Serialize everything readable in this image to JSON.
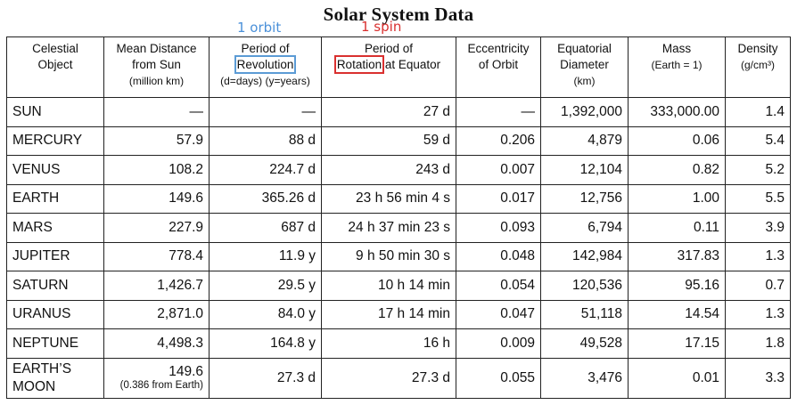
{
  "title": "Solar System Data",
  "notes": {
    "orbit": "1 orbit",
    "spin": "1 spin"
  },
  "headers": [
    {
      "lines": [
        "Celestial",
        "Object"
      ],
      "sub": ""
    },
    {
      "lines": [
        "Mean Distance",
        "from Sun"
      ],
      "sub": "(million km)"
    },
    {
      "lines": [
        "Period of",
        "Revolution"
      ],
      "sub": "(d=days)  (y=years)"
    },
    {
      "lines": [
        "Period of",
        "Rotation",
        "at Equator"
      ],
      "sub": ""
    },
    {
      "lines": [
        "Eccentricity",
        "of Orbit"
      ],
      "sub": ""
    },
    {
      "lines": [
        "Equatorial",
        "Diameter"
      ],
      "sub": "(km)"
    },
    {
      "lines": [
        "Mass",
        "(Earth = 1)"
      ],
      "sub": ""
    },
    {
      "lines": [
        "Density",
        "(g/cm³)"
      ],
      "sub": ""
    }
  ],
  "rows": [
    {
      "name": "SUN",
      "distance": "—",
      "revolution": "—",
      "rotation": "27 d",
      "eccentricity": "—",
      "diameter": "1,392,000",
      "mass": "333,000.00",
      "density": "1.4"
    },
    {
      "name": "MERCURY",
      "distance": "57.9",
      "revolution": "88 d",
      "rotation": "59 d",
      "eccentricity": "0.206",
      "diameter": "4,879",
      "mass": "0.06",
      "density": "5.4"
    },
    {
      "name": "VENUS",
      "distance": "108.2",
      "revolution": "224.7 d",
      "rotation": "243 d",
      "eccentricity": "0.007",
      "diameter": "12,104",
      "mass": "0.82",
      "density": "5.2"
    },
    {
      "name": "EARTH",
      "distance": "149.6",
      "revolution": "365.26 d",
      "rotation": "23 h 56 min 4 s",
      "eccentricity": "0.017",
      "diameter": "12,756",
      "mass": "1.00",
      "density": "5.5"
    },
    {
      "name": "MARS",
      "distance": "227.9",
      "revolution": "687 d",
      "rotation": "24 h 37 min 23 s",
      "eccentricity": "0.093",
      "diameter": "6,794",
      "mass": "0.11",
      "density": "3.9"
    },
    {
      "name": "JUPITER",
      "distance": "778.4",
      "revolution": "11.9 y",
      "rotation": "9 h 50 min 30 s",
      "eccentricity": "0.048",
      "diameter": "142,984",
      "mass": "317.83",
      "density": "1.3"
    },
    {
      "name": "SATURN",
      "distance": "1,426.7",
      "revolution": "29.5 y",
      "rotation": "10 h 14 min",
      "eccentricity": "0.054",
      "diameter": "120,536",
      "mass": "95.16",
      "density": "0.7"
    },
    {
      "name": "URANUS",
      "distance": "2,871.0",
      "revolution": "84.0 y",
      "rotation": "17 h 14 min",
      "eccentricity": "0.047",
      "diameter": "51,118",
      "mass": "14.54",
      "density": "1.3"
    },
    {
      "name": "NEPTUNE",
      "distance": "4,498.3",
      "revolution": "164.8 y",
      "rotation": "16 h",
      "eccentricity": "0.009",
      "diameter": "49,528",
      "mass": "17.15",
      "density": "1.8"
    },
    {
      "name": "EARTH’S MOON",
      "name_lines": [
        "EARTH’S",
        "MOON"
      ],
      "distance": "149.6",
      "distance_note": "(0.386 from Earth)",
      "revolution": "27.3 d",
      "rotation": "27.3 d",
      "eccentricity": "0.055",
      "diameter": "3,476",
      "mass": "0.01",
      "density": "3.3"
    }
  ],
  "colors": {
    "orbit_note": "#4a90d9",
    "spin_note": "#d9302f",
    "border": "#222222"
  }
}
